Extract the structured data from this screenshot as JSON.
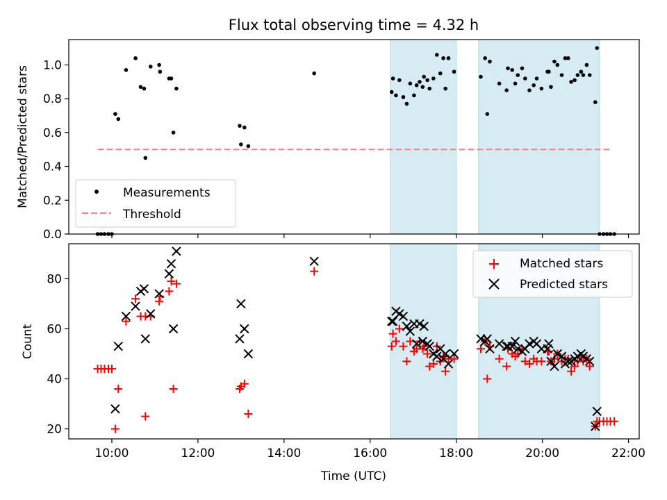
{
  "chart_data": {
    "title": "Flux total observing time = 4.32 h",
    "xlabel": "Time (UTC)",
    "xlim": [
      9.0,
      22.25
    ],
    "xticks": [
      {
        "v": 10,
        "label": "10:00"
      },
      {
        "v": 12,
        "label": "12:00"
      },
      {
        "v": 14,
        "label": "14:00"
      },
      {
        "v": 16,
        "label": "16:00"
      },
      {
        "v": 18,
        "label": "18:00"
      },
      {
        "v": 20,
        "label": "20:00"
      },
      {
        "v": 22,
        "label": "22:00"
      }
    ],
    "shaded_spans": [
      [
        16.47,
        18.0
      ],
      [
        18.52,
        21.33
      ]
    ],
    "shade_color": "#add8e6",
    "top": {
      "type": "scatter",
      "ylabel": "Matched/Predicted stars",
      "ylim": [
        0,
        1.15
      ],
      "yticks": [
        0.0,
        0.2,
        0.4,
        0.6,
        0.8,
        1.0
      ],
      "ytick_labels": [
        "0.0",
        "0.2",
        "0.4",
        "0.6",
        "0.8",
        "1.0"
      ],
      "legend": {
        "placement": "lower-left",
        "measurements_label": "Measurements",
        "threshold_label": "Threshold"
      },
      "threshold": {
        "y": 0.5,
        "x_range": [
          9.67,
          21.63
        ],
        "color": "#f08080"
      },
      "measurements": [
        [
          9.67,
          0.0
        ],
        [
          9.75,
          0.0
        ],
        [
          9.83,
          0.0
        ],
        [
          9.92,
          0.0
        ],
        [
          10.0,
          0.0
        ],
        [
          10.08,
          0.71
        ],
        [
          10.15,
          0.68
        ],
        [
          10.33,
          0.97
        ],
        [
          10.55,
          1.04
        ],
        [
          10.67,
          0.87
        ],
        [
          10.75,
          0.86
        ],
        [
          10.78,
          0.45
        ],
        [
          10.9,
          0.99
        ],
        [
          11.1,
          1.0
        ],
        [
          11.12,
          0.96
        ],
        [
          11.33,
          0.92
        ],
        [
          11.38,
          0.92
        ],
        [
          11.43,
          0.6
        ],
        [
          11.5,
          0.86
        ],
        [
          12.97,
          0.64
        ],
        [
          13.0,
          0.53
        ],
        [
          13.08,
          0.63
        ],
        [
          13.17,
          0.52
        ],
        [
          14.7,
          0.95
        ],
        [
          16.5,
          0.84
        ],
        [
          16.53,
          0.92
        ],
        [
          16.6,
          0.82
        ],
        [
          16.68,
          0.91
        ],
        [
          16.77,
          0.81
        ],
        [
          16.85,
          0.77
        ],
        [
          16.93,
          0.89
        ],
        [
          17.02,
          0.82
        ],
        [
          17.08,
          0.88
        ],
        [
          17.15,
          0.9
        ],
        [
          17.22,
          0.87
        ],
        [
          17.25,
          0.93
        ],
        [
          17.33,
          0.91
        ],
        [
          17.38,
          0.86
        ],
        [
          17.47,
          0.92
        ],
        [
          17.55,
          1.06
        ],
        [
          17.63,
          0.95
        ],
        [
          17.7,
          1.04
        ],
        [
          17.75,
          0.86
        ],
        [
          17.82,
          1.04
        ],
        [
          17.95,
          0.96
        ],
        [
          18.57,
          0.93
        ],
        [
          18.67,
          1.04
        ],
        [
          18.72,
          0.71
        ],
        [
          18.78,
          1.02
        ],
        [
          19.0,
          0.89
        ],
        [
          19.17,
          0.85
        ],
        [
          19.2,
          0.98
        ],
        [
          19.3,
          0.97
        ],
        [
          19.37,
          0.89
        ],
        [
          19.43,
          0.94
        ],
        [
          19.53,
          0.98
        ],
        [
          19.6,
          0.92
        ],
        [
          19.7,
          0.85
        ],
        [
          19.8,
          0.88
        ],
        [
          19.87,
          0.92
        ],
        [
          19.98,
          0.86
        ],
        [
          20.12,
          0.96
        ],
        [
          20.15,
          0.96
        ],
        [
          20.2,
          0.87
        ],
        [
          20.28,
          1.02
        ],
        [
          20.35,
          1.0
        ],
        [
          20.45,
          0.94
        ],
        [
          20.53,
          1.04
        ],
        [
          20.6,
          1.04
        ],
        [
          20.67,
          0.9
        ],
        [
          20.75,
          0.91
        ],
        [
          20.82,
          0.94
        ],
        [
          20.9,
          0.96
        ],
        [
          20.95,
          0.94
        ],
        [
          21.03,
          1.0
        ],
        [
          21.1,
          0.94
        ],
        [
          21.23,
          0.78
        ],
        [
          21.27,
          1.1
        ],
        [
          21.33,
          0.0
        ],
        [
          21.42,
          0.0
        ],
        [
          21.5,
          0.0
        ],
        [
          21.58,
          0.0
        ],
        [
          21.67,
          0.0
        ]
      ]
    },
    "bottom": {
      "type": "scatter",
      "ylabel": "Count",
      "ylim": [
        16,
        94
      ],
      "yticks": [
        20,
        40,
        60,
        80
      ],
      "ytick_labels": [
        "20",
        "40",
        "60",
        "80"
      ],
      "legend": {
        "placement": "top-right",
        "matched_label": "Matched stars",
        "predicted_label": "Predicted stars"
      },
      "series": [
        {
          "name": "Matched stars",
          "marker": "plus",
          "color": "#ff0000",
          "points": [
            [
              9.67,
              44
            ],
            [
              9.75,
              44
            ],
            [
              9.83,
              44
            ],
            [
              9.92,
              44
            ],
            [
              10.0,
              44
            ],
            [
              10.08,
              20
            ],
            [
              10.15,
              36
            ],
            [
              10.33,
              63
            ],
            [
              10.55,
              72
            ],
            [
              10.67,
              65
            ],
            [
              10.78,
              25
            ],
            [
              10.78,
              65
            ],
            [
              10.9,
              65
            ],
            [
              11.1,
              71
            ],
            [
              11.12,
              73
            ],
            [
              11.33,
              75
            ],
            [
              11.38,
              79
            ],
            [
              11.43,
              36
            ],
            [
              11.5,
              78
            ],
            [
              12.97,
              36
            ],
            [
              13.0,
              37
            ],
            [
              13.08,
              38
            ],
            [
              13.17,
              26
            ],
            [
              14.7,
              83
            ],
            [
              16.5,
              53
            ],
            [
              16.53,
              58
            ],
            [
              16.6,
              55
            ],
            [
              16.68,
              60
            ],
            [
              16.77,
              53
            ],
            [
              16.85,
              47
            ],
            [
              16.93,
              55
            ],
            [
              17.02,
              51
            ],
            [
              17.08,
              52
            ],
            [
              17.15,
              55
            ],
            [
              17.22,
              52
            ],
            [
              17.25,
              53
            ],
            [
              17.33,
              50
            ],
            [
              17.38,
              45
            ],
            [
              17.47,
              46
            ],
            [
              17.55,
              53
            ],
            [
              17.63,
              47
            ],
            [
              17.7,
              49
            ],
            [
              17.75,
              43
            ],
            [
              17.82,
              48
            ],
            [
              17.95,
              48
            ],
            [
              18.57,
              52
            ],
            [
              18.67,
              55
            ],
            [
              18.72,
              40
            ],
            [
              18.78,
              53
            ],
            [
              19.0,
              48
            ],
            [
              19.17,
              45
            ],
            [
              19.2,
              52
            ],
            [
              19.3,
              50
            ],
            [
              19.37,
              49
            ],
            [
              19.43,
              50
            ],
            [
              19.53,
              52
            ],
            [
              19.6,
              47
            ],
            [
              19.7,
              46
            ],
            [
              19.8,
              48
            ],
            [
              19.87,
              47
            ],
            [
              19.98,
              47
            ],
            [
              20.12,
              51
            ],
            [
              20.15,
              51
            ],
            [
              20.2,
              47
            ],
            [
              20.28,
              48
            ],
            [
              20.35,
              50
            ],
            [
              20.45,
              47
            ],
            [
              20.53,
              48
            ],
            [
              20.6,
              48
            ],
            [
              20.67,
              43
            ],
            [
              20.75,
              45
            ],
            [
              20.82,
              47
            ],
            [
              20.9,
              49
            ],
            [
              20.95,
              47
            ],
            [
              21.03,
              48
            ],
            [
              21.1,
              45
            ],
            [
              21.23,
              21
            ],
            [
              21.27,
              23
            ],
            [
              21.33,
              23
            ],
            [
              21.42,
              23
            ],
            [
              21.5,
              23
            ],
            [
              21.58,
              23
            ],
            [
              21.67,
              23
            ]
          ]
        },
        {
          "name": "Predicted stars",
          "marker": "x",
          "color": "#000000",
          "points": [
            [
              10.08,
              28
            ],
            [
              10.15,
              53
            ],
            [
              10.33,
              65
            ],
            [
              10.55,
              69
            ],
            [
              10.67,
              75
            ],
            [
              10.75,
              76
            ],
            [
              10.78,
              56
            ],
            [
              10.9,
              66
            ],
            [
              11.1,
              74
            ],
            [
              11.33,
              82
            ],
            [
              11.38,
              86
            ],
            [
              11.43,
              60
            ],
            [
              11.5,
              91
            ],
            [
              12.97,
              56
            ],
            [
              13.0,
              70
            ],
            [
              13.08,
              60
            ],
            [
              13.17,
              50
            ],
            [
              14.7,
              87
            ],
            [
              16.5,
              63
            ],
            [
              16.53,
              63
            ],
            [
              16.6,
              67
            ],
            [
              16.68,
              66
            ],
            [
              16.77,
              65
            ],
            [
              16.85,
              61
            ],
            [
              16.93,
              59
            ],
            [
              17.02,
              62
            ],
            [
              17.08,
              54
            ],
            [
              17.15,
              62
            ],
            [
              17.22,
              55
            ],
            [
              17.25,
              61
            ],
            [
              17.33,
              54
            ],
            [
              17.38,
              53
            ],
            [
              17.47,
              50
            ],
            [
              17.55,
              49
            ],
            [
              17.63,
              52
            ],
            [
              17.7,
              48
            ],
            [
              17.75,
              50
            ],
            [
              17.82,
              46
            ],
            [
              17.95,
              50
            ],
            [
              18.57,
              56
            ],
            [
              18.67,
              55
            ],
            [
              18.72,
              56
            ],
            [
              18.78,
              52
            ],
            [
              19.0,
              54
            ],
            [
              19.17,
              53
            ],
            [
              19.2,
              53
            ],
            [
              19.3,
              53
            ],
            [
              19.37,
              55
            ],
            [
              19.43,
              52
            ],
            [
              19.53,
              51
            ],
            [
              19.6,
              52
            ],
            [
              19.7,
              54
            ],
            [
              19.8,
              55
            ],
            [
              19.87,
              54
            ],
            [
              19.98,
              52
            ],
            [
              20.12,
              52
            ],
            [
              20.15,
              54
            ],
            [
              20.2,
              47
            ],
            [
              20.28,
              45
            ],
            [
              20.35,
              50
            ],
            [
              20.45,
              49
            ],
            [
              20.53,
              46
            ],
            [
              20.6,
              47
            ],
            [
              20.67,
              47
            ],
            [
              20.75,
              48
            ],
            [
              20.82,
              49
            ],
            [
              20.9,
              50
            ],
            [
              20.95,
              49
            ],
            [
              21.03,
              48
            ],
            [
              21.1,
              47
            ],
            [
              21.23,
              21
            ],
            [
              21.27,
              27
            ]
          ]
        }
      ]
    }
  }
}
